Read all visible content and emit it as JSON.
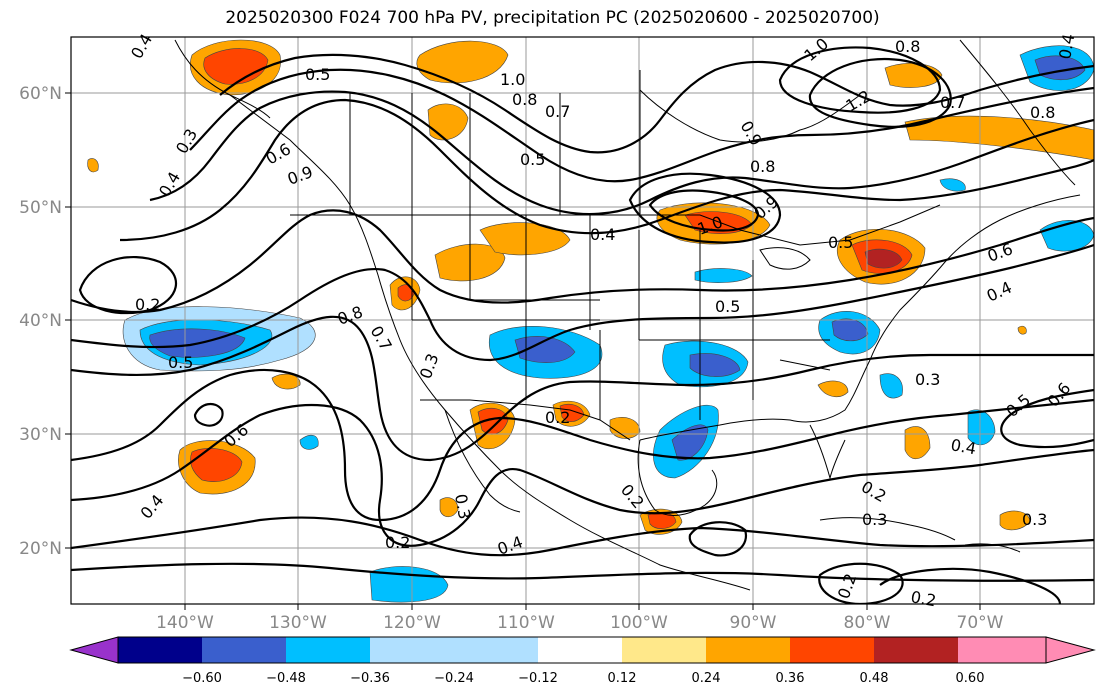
{
  "title": "2025020300 F024 700 hPa PV, precipitation PC (2025020600 - 2025020700)",
  "axes": {
    "lat_labels": [
      "20°N",
      "30°N",
      "40°N",
      "50°N",
      "60°N"
    ],
    "lon_labels": [
      "140°W",
      "130°W",
      "120°W",
      "110°W",
      "100°W",
      "90°W",
      "80°W",
      "70°W"
    ],
    "lon_range": [
      -150,
      -60
    ],
    "lat_range": [
      15,
      65
    ]
  },
  "contour_labels": [
    "0.4",
    "0.5",
    "1.0",
    "0.8",
    "0.7",
    "0.8",
    "1.0",
    "1.2",
    "0.7",
    "0.8",
    "0.9",
    "0.4",
    "0.3",
    "0.6",
    "0.5",
    "0.8",
    "0.9",
    "0.4",
    "1.0",
    "0.9",
    "0.5",
    "0.4",
    "0.6",
    "0.4",
    "0.2",
    "0.8",
    "0.7",
    "0.5",
    "0.5",
    "0.3",
    "0.6",
    "0.3",
    "0.5",
    "0.6",
    "0.4",
    "0.2",
    "0.4",
    "0.3",
    "0.2",
    "0.3",
    "0.2",
    "0.3",
    "0.4",
    "0.2",
    "0.2",
    "0.2"
  ],
  "colorbar": {
    "ticks": [
      "−0.60",
      "−0.48",
      "−0.36",
      "−0.24",
      "−0.12",
      "0.12",
      "0.24",
      "0.36",
      "0.48",
      "0.60"
    ],
    "colors": [
      "#9932cc",
      "#00008b",
      "#3a5fcd",
      "#00bfff",
      "#b0e0ff",
      "#ffffff",
      "#ffe88a",
      "#ffa500",
      "#ff4500",
      "#b22222",
      "#ff8cb4"
    ]
  },
  "colors": {
    "neg_strong": "#3a5fcd",
    "neg_mid": "#00bfff",
    "neg_light": "#b0e0ff",
    "pos_light": "#ffe88a",
    "pos_mid": "#ffa500",
    "pos_strong": "#ff4500",
    "pos_darker": "#b22222"
  }
}
